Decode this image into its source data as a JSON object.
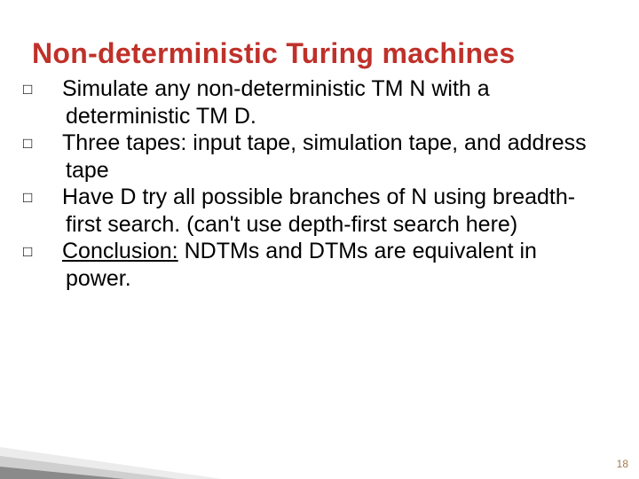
{
  "title": {
    "text": "Non-deterministic Turing machines",
    "color": "#bf312a"
  },
  "bullets": {
    "glyph": "□",
    "items": [
      {
        "lead": "Simulate",
        "rest": " any non-deterministic TM N with a deterministic TM D."
      },
      {
        "lead": "Three",
        "rest": " tapes: input tape, simulation tape, and address tape"
      },
      {
        "lead": "Have",
        "rest": " D try all possible branches of N using breadth-first search. (can't use depth-first search here)"
      },
      {
        "lead": "Conclusion:",
        "rest": " NDTMs and DTMs are equivalent in power.",
        "lead_underline": true
      }
    ]
  },
  "decor": {
    "triangle_light": "#ececec",
    "triangle_mid": "#cfcfcf",
    "triangle_dark": "#8a8a8a"
  },
  "pagenum": "18"
}
